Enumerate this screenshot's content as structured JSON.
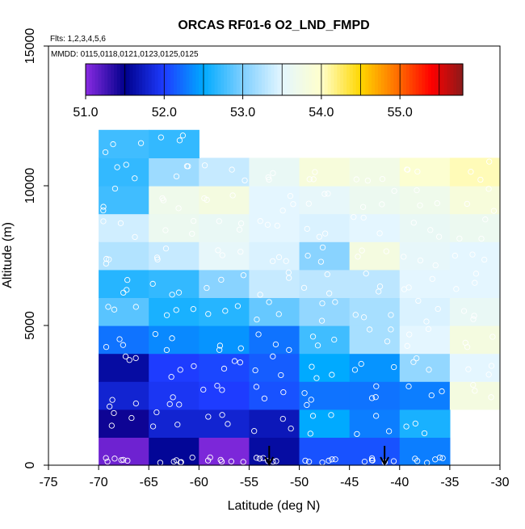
{
  "chart_data": {
    "type": "heatmap",
    "title": "ORCAS RF01-6 O2_LND_FMPD",
    "subtitle_flights": "Flts: 1,2,3,4,5,6",
    "subtitle_dates": "MMDD: 0115,0118,0121,0123,0125,0125",
    "xlabel": "Latitude (deg N)",
    "ylabel": "Altitude (m)",
    "xlim": [
      -75,
      -30
    ],
    "ylim": [
      0,
      15000
    ],
    "x_ticks": [
      -75,
      -70,
      -65,
      -60,
      -55,
      -50,
      -45,
      -40,
      -35,
      -30
    ],
    "x_tick_labels": [
      "-75",
      "-70",
      "-65",
      "-60",
      "-55",
      "-50",
      "-45",
      "-40",
      "-35",
      "-30"
    ],
    "y_ticks": [
      0,
      5000,
      10000,
      15000
    ],
    "y_tick_labels": [
      "0",
      "5000",
      "10000",
      "15000"
    ],
    "colorbar": {
      "range": [
        51.0,
        55.8
      ],
      "tick_values": [
        51.0,
        52.0,
        53.0,
        54.0,
        55.0
      ],
      "tick_labels": [
        "51.0",
        "52.0",
        "53.0",
        "54.0",
        "55.0"
      ],
      "divisions": [
        51.0,
        51.5,
        52.0,
        52.5,
        53.0,
        53.5,
        54.0,
        54.5,
        55.0,
        55.5
      ],
      "stops": [
        {
          "v": 51.0,
          "c": "#8a2be2"
        },
        {
          "v": 51.5,
          "c": "#00008b"
        },
        {
          "v": 52.0,
          "c": "#1e3cff"
        },
        {
          "v": 52.5,
          "c": "#00aaff"
        },
        {
          "v": 53.0,
          "c": "#7fcfff"
        },
        {
          "v": 53.5,
          "c": "#e4f6ff"
        },
        {
          "v": 54.0,
          "c": "#ffffcc"
        },
        {
          "v": 54.5,
          "c": "#ffd700"
        },
        {
          "v": 55.0,
          "c": "#ff6600"
        },
        {
          "v": 55.4,
          "c": "#ff0000"
        },
        {
          "v": 55.8,
          "c": "#8b1a1a"
        }
      ]
    },
    "cells": [
      {
        "lat": -70,
        "alt": 0,
        "v": 51.1
      },
      {
        "lat": -65,
        "alt": 0,
        "v": 51.55
      },
      {
        "lat": -60,
        "alt": 0,
        "v": 51.05
      },
      {
        "lat": -55,
        "alt": 0,
        "v": 51.6
      },
      {
        "lat": -50,
        "alt": 0,
        "v": 52.1
      },
      {
        "lat": -45,
        "alt": 0,
        "v": 52.1
      },
      {
        "lat": -40,
        "alt": 0,
        "v": 52.3
      },
      {
        "lat": -70,
        "alt": 1000,
        "v": 51.45
      },
      {
        "lat": -65,
        "alt": 1000,
        "v": 51.8
      },
      {
        "lat": -60,
        "alt": 1000,
        "v": 51.8
      },
      {
        "lat": -55,
        "alt": 1000,
        "v": 51.7
      },
      {
        "lat": -50,
        "alt": 1000,
        "v": 52.5
      },
      {
        "lat": -45,
        "alt": 1000,
        "v": 52.3
      },
      {
        "lat": -40,
        "alt": 1000,
        "v": 52.6
      },
      {
        "lat": -70,
        "alt": 2000,
        "v": 51.8
      },
      {
        "lat": -65,
        "alt": 2000,
        "v": 51.95
      },
      {
        "lat": -60,
        "alt": 2000,
        "v": 52.0
      },
      {
        "lat": -55,
        "alt": 2000,
        "v": 52.1
      },
      {
        "lat": -50,
        "alt": 2000,
        "v": 52.25
      },
      {
        "lat": -45,
        "alt": 2000,
        "v": 52.25
      },
      {
        "lat": -40,
        "alt": 2000,
        "v": 52.3
      },
      {
        "lat": -35,
        "alt": 2000,
        "v": 53.8
      },
      {
        "lat": -70,
        "alt": 3000,
        "v": 51.6
      },
      {
        "lat": -65,
        "alt": 3000,
        "v": 52.0
      },
      {
        "lat": -60,
        "alt": 3000,
        "v": 52.05
      },
      {
        "lat": -55,
        "alt": 3000,
        "v": 52.15
      },
      {
        "lat": -50,
        "alt": 3000,
        "v": 52.5
      },
      {
        "lat": -45,
        "alt": 3000,
        "v": 52.4
      },
      {
        "lat": -40,
        "alt": 3000,
        "v": 53.1
      },
      {
        "lat": -35,
        "alt": 3000,
        "v": 53.5
      },
      {
        "lat": -70,
        "alt": 4000,
        "v": 52.25
      },
      {
        "lat": -65,
        "alt": 4000,
        "v": 52.35
      },
      {
        "lat": -60,
        "alt": 4000,
        "v": 52.4
      },
      {
        "lat": -55,
        "alt": 4000,
        "v": 52.25
      },
      {
        "lat": -50,
        "alt": 4000,
        "v": 52.75
      },
      {
        "lat": -45,
        "alt": 4000,
        "v": 53.2
      },
      {
        "lat": -40,
        "alt": 4000,
        "v": 53.5
      },
      {
        "lat": -35,
        "alt": 4000,
        "v": 53.8
      },
      {
        "lat": -70,
        "alt": 5000,
        "v": 52.85
      },
      {
        "lat": -65,
        "alt": 5000,
        "v": 52.6
      },
      {
        "lat": -60,
        "alt": 5000,
        "v": 52.65
      },
      {
        "lat": -55,
        "alt": 5000,
        "v": 52.9
      },
      {
        "lat": -50,
        "alt": 5000,
        "v": 53.1
      },
      {
        "lat": -45,
        "alt": 5000,
        "v": 53.2
      },
      {
        "lat": -40,
        "alt": 5000,
        "v": 53.45
      },
      {
        "lat": -35,
        "alt": 5000,
        "v": 53.6
      },
      {
        "lat": -70,
        "alt": 6000,
        "v": 52.65
      },
      {
        "lat": -65,
        "alt": 6000,
        "v": 52.7
      },
      {
        "lat": -60,
        "alt": 6000,
        "v": 53.05
      },
      {
        "lat": -55,
        "alt": 6000,
        "v": 53.35
      },
      {
        "lat": -50,
        "alt": 6000,
        "v": 53.3
      },
      {
        "lat": -45,
        "alt": 6000,
        "v": 53.3
      },
      {
        "lat": -40,
        "alt": 6000,
        "v": 53.5
      },
      {
        "lat": -35,
        "alt": 6000,
        "v": 53.5
      },
      {
        "lat": -70,
        "alt": 7000,
        "v": 53.25
      },
      {
        "lat": -65,
        "alt": 7000,
        "v": 53.35
      },
      {
        "lat": -60,
        "alt": 7000,
        "v": 53.55
      },
      {
        "lat": -55,
        "alt": 7000,
        "v": 53.45
      },
      {
        "lat": -50,
        "alt": 7000,
        "v": 53.05
      },
      {
        "lat": -45,
        "alt": 7000,
        "v": 53.8
      },
      {
        "lat": -40,
        "alt": 7000,
        "v": 53.55
      },
      {
        "lat": -35,
        "alt": 7000,
        "v": 53.5
      },
      {
        "lat": -70,
        "alt": 8000,
        "v": 53.4
      },
      {
        "lat": -65,
        "alt": 8000,
        "v": 53.65
      },
      {
        "lat": -60,
        "alt": 8000,
        "v": 53.6
      },
      {
        "lat": -55,
        "alt": 8000,
        "v": 53.5
      },
      {
        "lat": -50,
        "alt": 8000,
        "v": 53.45
      },
      {
        "lat": -45,
        "alt": 8000,
        "v": 53.5
      },
      {
        "lat": -40,
        "alt": 8000,
        "v": 53.6
      },
      {
        "lat": -35,
        "alt": 8000,
        "v": 53.65
      },
      {
        "lat": -70,
        "alt": 9000,
        "v": 52.75
      },
      {
        "lat": -65,
        "alt": 9000,
        "v": 53.7
      },
      {
        "lat": -60,
        "alt": 9000,
        "v": 53.8
      },
      {
        "lat": -55,
        "alt": 9000,
        "v": 53.5
      },
      {
        "lat": -50,
        "alt": 9000,
        "v": 53.55
      },
      {
        "lat": -45,
        "alt": 9000,
        "v": 53.65
      },
      {
        "lat": -40,
        "alt": 9000,
        "v": 53.7
      },
      {
        "lat": -35,
        "alt": 9000,
        "v": 53.85
      },
      {
        "lat": -70,
        "alt": 10000,
        "v": 52.7
      },
      {
        "lat": -65,
        "alt": 10000,
        "v": 53.15
      },
      {
        "lat": -60,
        "alt": 10000,
        "v": 53.35
      },
      {
        "lat": -55,
        "alt": 10000,
        "v": 53.6
      },
      {
        "lat": -50,
        "alt": 10000,
        "v": 53.85
      },
      {
        "lat": -45,
        "alt": 10000,
        "v": 53.75
      },
      {
        "lat": -40,
        "alt": 10000,
        "v": 53.95
      },
      {
        "lat": -35,
        "alt": 10000,
        "v": 54.05
      },
      {
        "lat": -70,
        "alt": 11000,
        "v": 52.75
      },
      {
        "lat": -65,
        "alt": 11000,
        "v": 52.7
      }
    ],
    "arrows_at_lat": [
      -53,
      -41.5
    ]
  }
}
